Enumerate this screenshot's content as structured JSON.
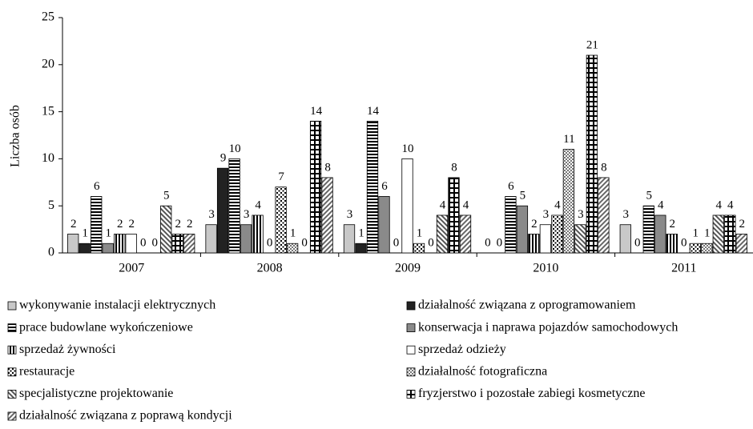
{
  "chart_data": {
    "type": "bar",
    "ylabel": "Liczba osób",
    "categories": [
      "2007",
      "2008",
      "2009",
      "2010",
      "2011"
    ],
    "ylim": [
      0,
      25
    ],
    "yticks": [
      0,
      5,
      10,
      15,
      20,
      25
    ],
    "legend": "bottom",
    "series": [
      {
        "name": "wykonywanie instalacji elektrycznych",
        "color": "#c8c8c8",
        "pattern": "solid",
        "values": [
          2,
          3,
          3,
          0,
          3
        ]
      },
      {
        "name": "działalność związana z oprogramowaniem",
        "color": "#222222",
        "pattern": "solid",
        "values": [
          1,
          9,
          1,
          0,
          0
        ]
      },
      {
        "name": "prace budowlane wykończeniowe",
        "color": "#000000",
        "pattern": "hstripe",
        "values": [
          6,
          10,
          14,
          6,
          5
        ]
      },
      {
        "name": "konserwacja i naprawa pojazdów samochodowych",
        "color": "#8a8a8a",
        "pattern": "solid",
        "values": [
          1,
          3,
          6,
          5,
          4
        ]
      },
      {
        "name": "sprzedaż żywności",
        "color": "#000000",
        "pattern": "vstripe",
        "values": [
          2,
          4,
          0,
          2,
          2
        ]
      },
      {
        "name": "sprzedaż odzieży",
        "color": "#ffffff",
        "pattern": "solid",
        "values": [
          2,
          0,
          10,
          3,
          0
        ]
      },
      {
        "name": "restauracje",
        "color": "#000000",
        "pattern": "dots",
        "values": [
          0,
          7,
          1,
          4,
          1
        ]
      },
      {
        "name": "działalność fotograficzna",
        "color": "#777777",
        "pattern": "checker",
        "values": [
          0,
          1,
          0,
          11,
          1
        ]
      },
      {
        "name": "specjalistyczne projektowanie",
        "color": "#555555",
        "pattern": "diag",
        "values": [
          5,
          0,
          4,
          3,
          4
        ]
      },
      {
        "name": "fryzjerstwo i pozostałe zabiegi kosmetyczne",
        "color": "#000000",
        "pattern": "grid",
        "values": [
          2,
          14,
          8,
          21,
          4
        ]
      },
      {
        "name": "działalność związana z poprawą kondycji",
        "color": "#666666",
        "pattern": "diag2",
        "values": [
          2,
          8,
          4,
          8,
          2
        ]
      }
    ]
  }
}
